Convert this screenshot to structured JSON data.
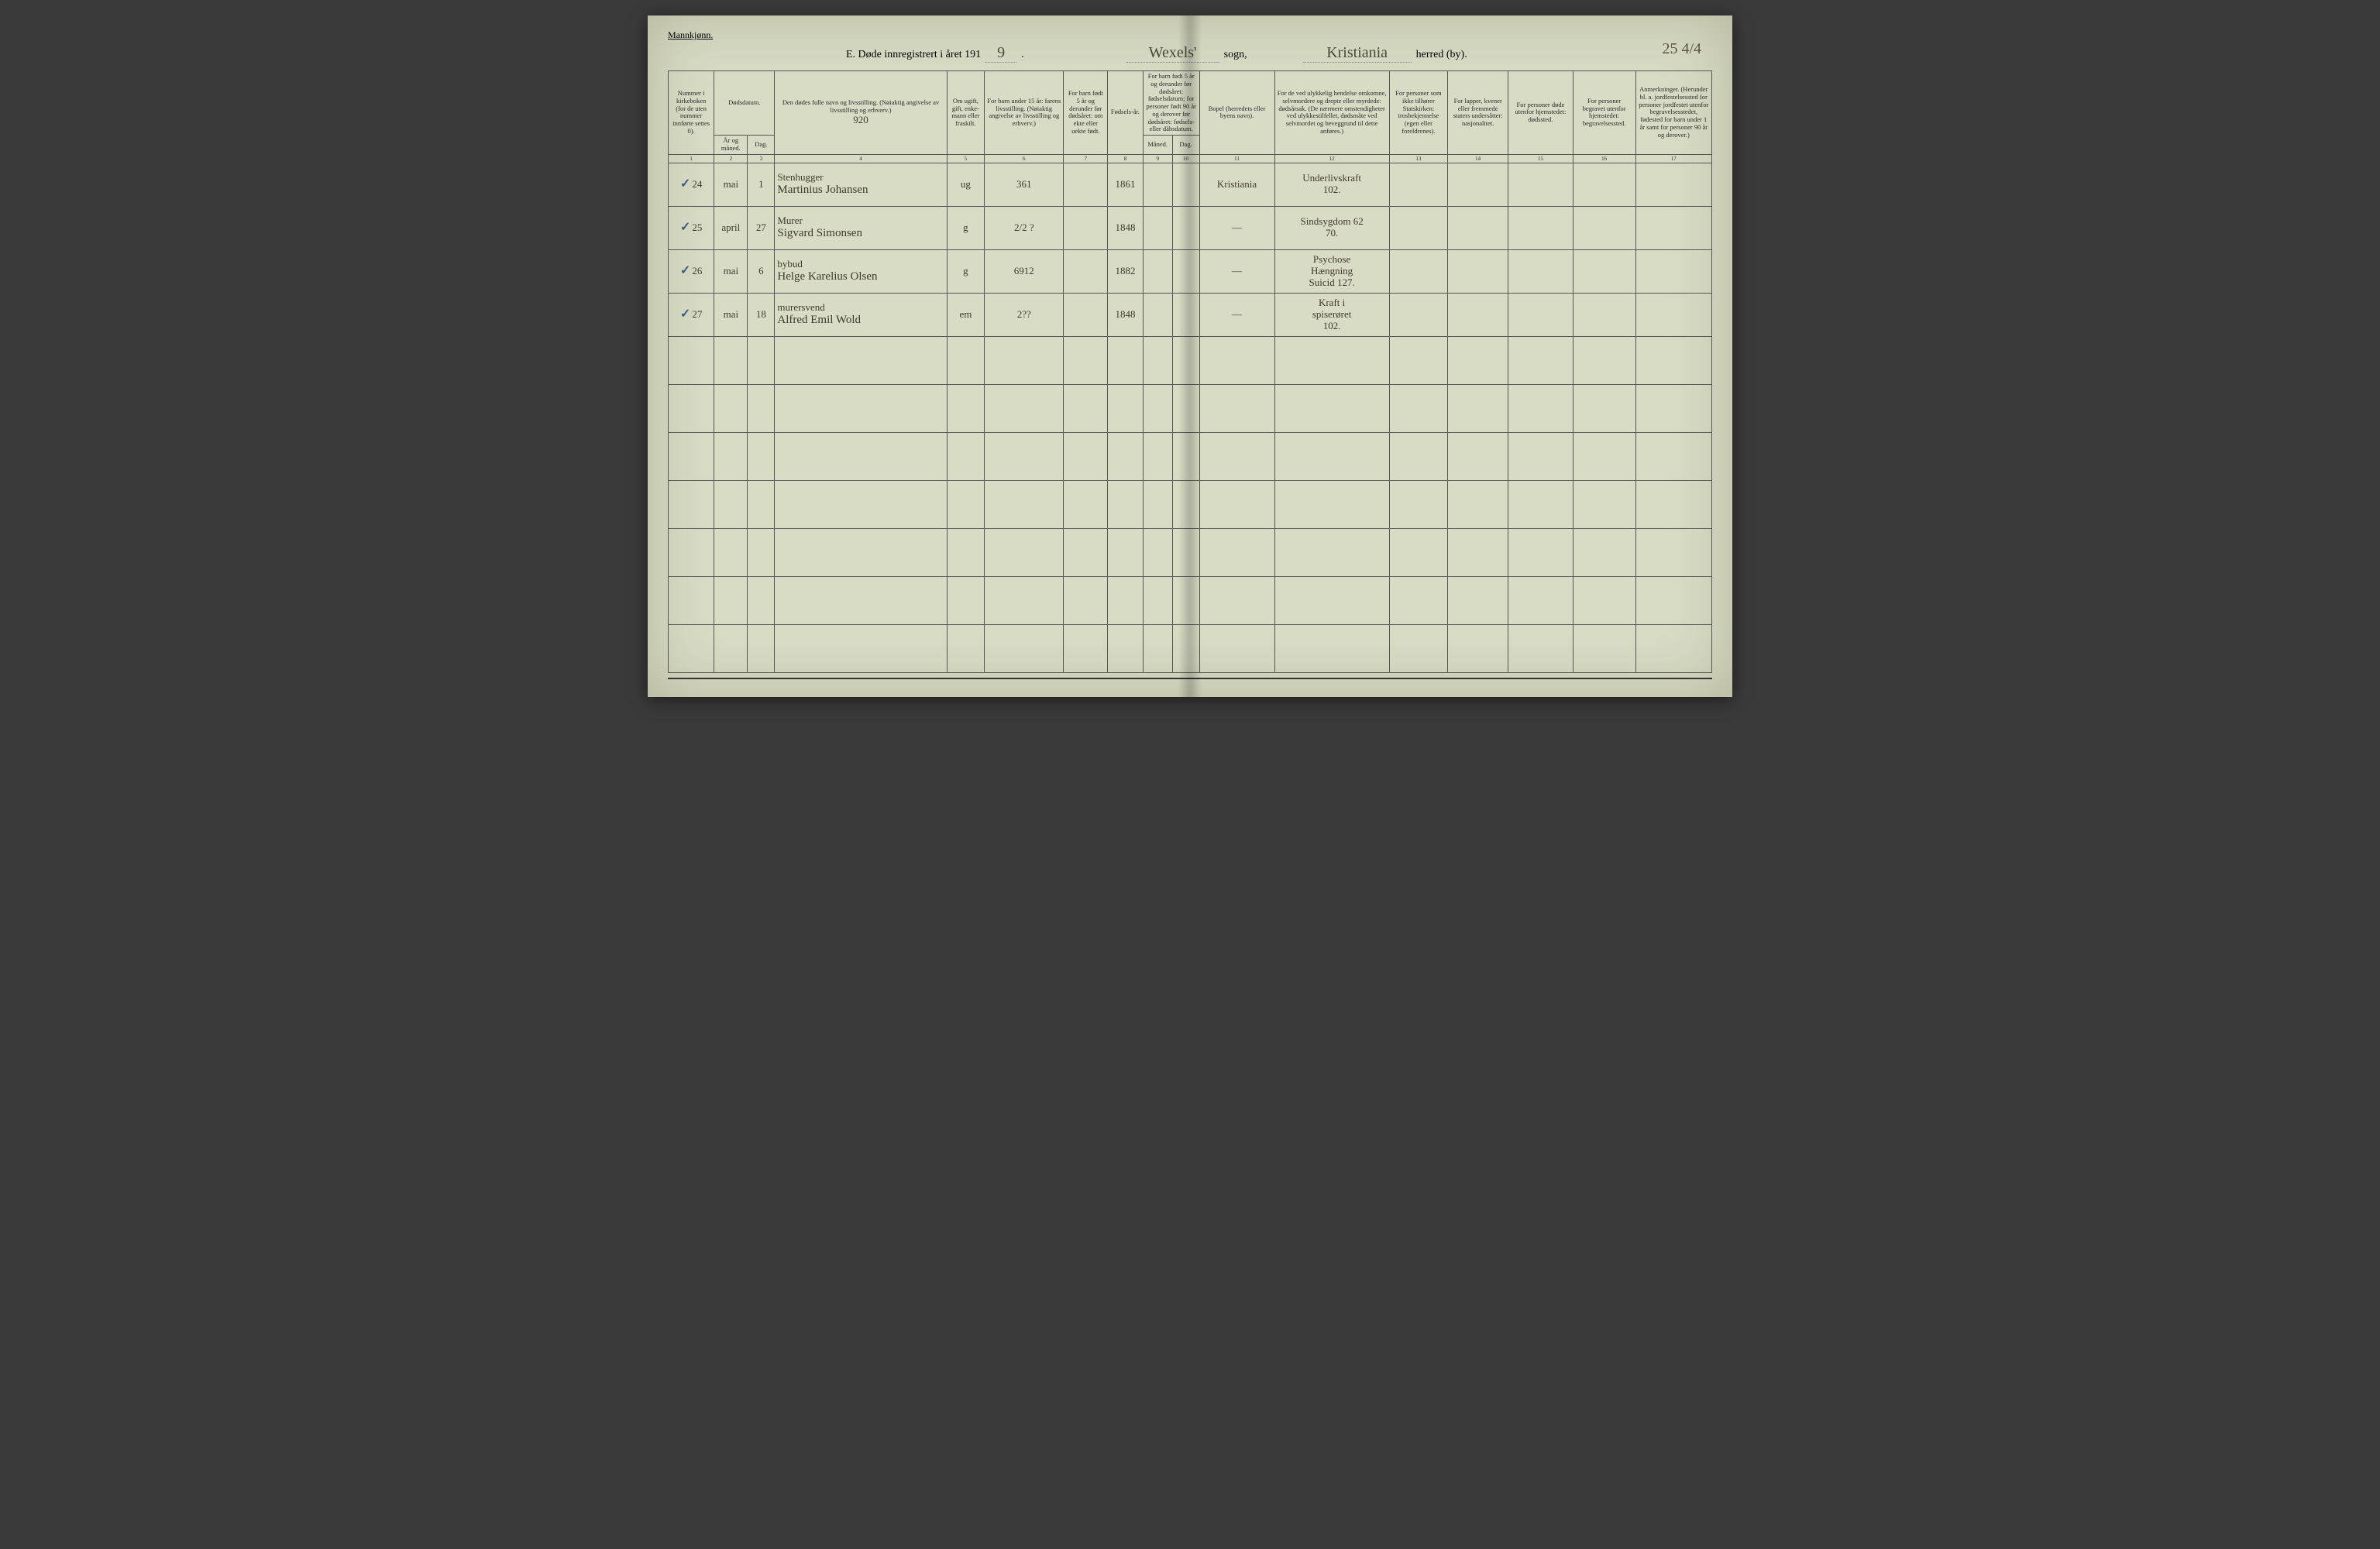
{
  "header": {
    "gender_label": "Mannkjønn.",
    "title_prefix": "E. Døde innregistrert i året 191",
    "year_suffix": "9",
    "period": ".",
    "sogn_value": "Wexels'",
    "sogn_label": "sogn,",
    "herred_value": "Kristiania",
    "herred_label": "herred (by).",
    "page_number": "25 4/4"
  },
  "columns": {
    "c1": "Nummer i kirke­boken (for de uten nummer innførte settes 0).",
    "c2_top": "Dødsdatum.",
    "c2a": "År og måned.",
    "c2b": "Dag.",
    "c4": "Den dødes fulle navn og livsstilling. (Nøiaktig angivelse av livsstilling og erhverv.)",
    "c4_year": "920",
    "c5": "Om ugift, gift, enke­mann eller fraskilt.",
    "c6": "For barn under 15 år: farens livsstilling. (Nøiaktig angivelse av livsstilling og erhverv.)",
    "c7": "For barn født 5 år og derunder før dødsåret: om ekte eller uekte født.",
    "c8": "Fødsels-år.",
    "c9_top": "For barn født 5 år og derunder før dødsåret: fødselsdatum; for personer født 90 år og derover før dødsåret: fødsels- eller dåbsdatum.",
    "c9a": "Måned.",
    "c9b": "Dag.",
    "c11": "Bopel (herredets eller byens navn).",
    "c12": "For de ved ulykkelig hendelse omkomne, selvmordere og drepte eller myrdede: dødsårsak. (De nærmere omsten­digheter ved ulykkes­tilfellet, dødsmåte ved selvmordet og beveg­grund til dette anføres.)",
    "c13": "For personer som ikke tilhører Statskirken: trosbekjennelse (egen eller foreldrenes).",
    "c14": "For lapper, kvener eller fremmede staters undersåtter: nasjonalitet.",
    "c15": "For personer døde utenfor hjemstedet: dødssted.",
    "c16": "For personer begravet utenfor hjemstedet: begravelsessted.",
    "c17": "Anmerkninger. (Herunder bl. a. jordfestelsessted for personer jordfestet utenfor begravelses­stedet, fødested for barn under 1 år samt for personer 90 år og derover.)"
  },
  "colnums": [
    "1",
    "2",
    "3",
    "4",
    "5",
    "6",
    "7",
    "8",
    "9",
    "10",
    "11",
    "12",
    "13",
    "14",
    "15",
    "16",
    "17"
  ],
  "rows": [
    {
      "num": "24",
      "tick": true,
      "month": "mai",
      "day": "1",
      "occ": "Stenhugger",
      "name": "Martinius Johansen",
      "marital": "ug",
      "col6": "361",
      "birth": "1861",
      "bopel": "Kristiania",
      "cause": "Underlivskraft\n102."
    },
    {
      "num": "25",
      "tick": true,
      "month": "april",
      "day": "27",
      "occ": "Murer",
      "name": "Sigvard Simonsen",
      "marital": "g",
      "col6": "2/2 ?",
      "birth": "1848",
      "bopel": "—",
      "cause": "Sindsygdom 62\n70."
    },
    {
      "num": "26",
      "tick": true,
      "month": "mai",
      "day": "6",
      "occ": "bybud",
      "name": "Helge Karelius Olsen",
      "marital": "g",
      "col6": "6912",
      "birth": "1882",
      "bopel": "—",
      "cause": "Psychose\nHængning\nSuicid 127."
    },
    {
      "num": "27",
      "tick": true,
      "month": "mai",
      "day": "18",
      "occ": "murersvend",
      "name": "Alfred Emil Wold",
      "marital": "em",
      "col6": "2??",
      "birth": "1848",
      "bopel": "—",
      "cause": "Kraft i\nspiserøret\n102."
    }
  ],
  "layout": {
    "col_widths_pct": [
      4.4,
      3.2,
      2.6,
      16.5,
      3.6,
      7.6,
      4.2,
      3.4,
      2.8,
      2.6,
      7.2,
      11.0,
      5.6,
      5.8,
      6.2,
      6.0,
      7.3
    ],
    "empty_rows": 7
  },
  "colors": {
    "paper": "#d8dcc5",
    "ink_print": "#2a2a2a",
    "ink_hand": "#3f3a2a",
    "tick": "#3a5a8a",
    "border": "#555555"
  }
}
